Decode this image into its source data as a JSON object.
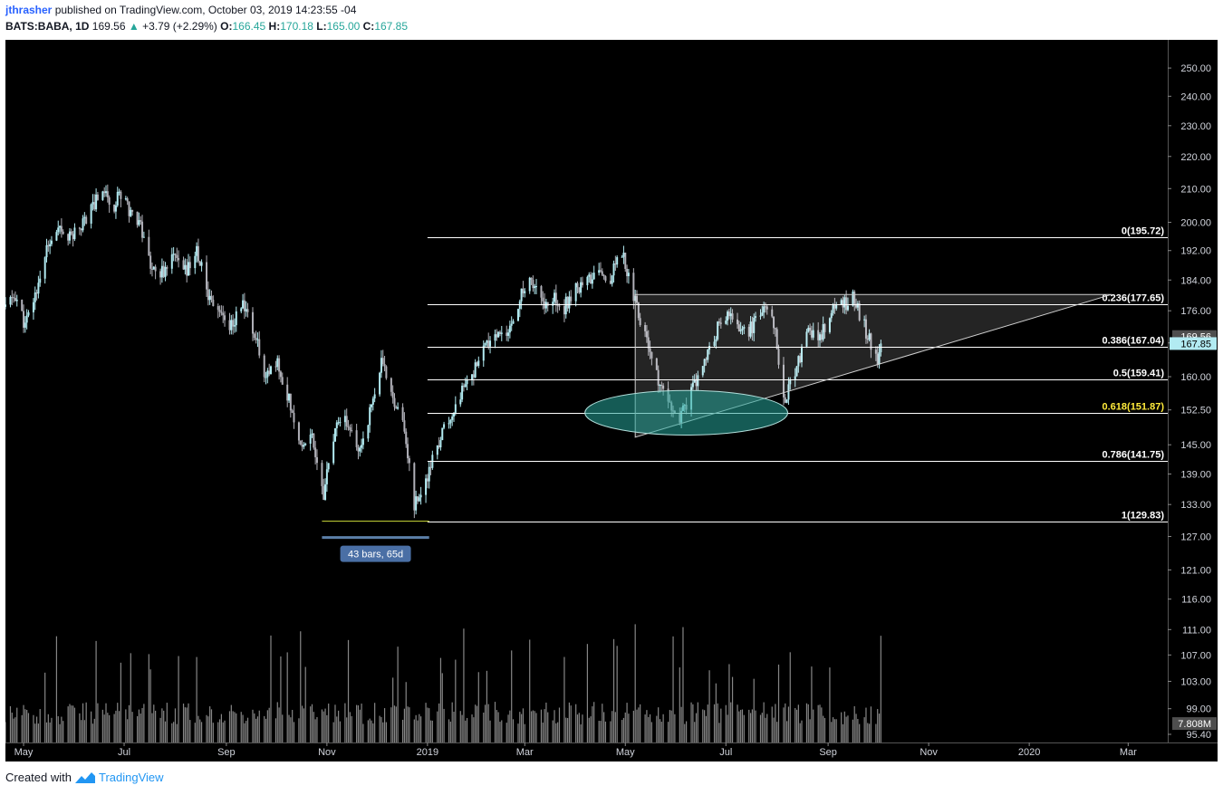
{
  "header": {
    "user": "jthrasher",
    "published": "published on TradingView.com, October 03, 2019 14:23:55 -04",
    "symbol": "BATS:BABA, 1D",
    "last": "169.56",
    "change_arrow": "▲",
    "change": "+3.79 (+2.29%)",
    "o_label": "O:",
    "o": "166.45",
    "h_label": "H:",
    "h": "170.18",
    "l_label": "L:",
    "l": "165.00",
    "c_label": "C:",
    "c": "167.85"
  },
  "footer": {
    "created": "Created with",
    "brand": "TradingView"
  },
  "colors": {
    "background": "#000000",
    "up_candle": "#b2ebf2",
    "down_candle": "#b0b0b8",
    "volume": "#9e9e9e",
    "fib_line": "#ffffff",
    "fib_highlight": "#ffeb3b",
    "ellipse_fill": "#26a69a",
    "price_tag": "#b2ebf2"
  },
  "chart_data": {
    "type": "candlestick",
    "title": "BATS:BABA, 1D",
    "y_scale": "log",
    "ylim": [
      95.4,
      256
    ],
    "x_range": [
      "2018-04-20",
      "2020-03-25"
    ],
    "x_ticks": [
      {
        "label": "May",
        "date": "2018-05-01"
      },
      {
        "label": "Jul",
        "date": "2018-07-01"
      },
      {
        "label": "Sep",
        "date": "2018-09-01"
      },
      {
        "label": "Nov",
        "date": "2018-11-01"
      },
      {
        "label": "2019",
        "date": "2019-01-01"
      },
      {
        "label": "Mar",
        "date": "2019-03-01"
      },
      {
        "label": "May",
        "date": "2019-05-01"
      },
      {
        "label": "Jul",
        "date": "2019-07-01"
      },
      {
        "label": "Sep",
        "date": "2019-09-01"
      },
      {
        "label": "Nov",
        "date": "2019-11-01"
      },
      {
        "label": "2020",
        "date": "2020-01-01"
      },
      {
        "label": "Mar",
        "date": "2020-03-01"
      }
    ],
    "y_ticks": [
      "250.00",
      "240.00",
      "230.00",
      "220.00",
      "210.00",
      "200.00",
      "192.00",
      "184.00",
      "176.00",
      "168.00",
      "160.00",
      "152.50",
      "145.00",
      "139.00",
      "133.00",
      "127.00",
      "121.00",
      "116.00",
      "111.00",
      "107.00",
      "103.00",
      "99.00",
      "95.40"
    ],
    "price_path": [
      {
        "date": "2018-04-20",
        "close": 177
      },
      {
        "date": "2018-04-26",
        "close": 180
      },
      {
        "date": "2018-05-02",
        "close": 172
      },
      {
        "date": "2018-05-08",
        "close": 180
      },
      {
        "date": "2018-05-15",
        "close": 192
      },
      {
        "date": "2018-05-22",
        "close": 197
      },
      {
        "date": "2018-05-30",
        "close": 196
      },
      {
        "date": "2018-06-06",
        "close": 200
      },
      {
        "date": "2018-06-12",
        "close": 205
      },
      {
        "date": "2018-06-18",
        "close": 210
      },
      {
        "date": "2018-06-25",
        "close": 205
      },
      {
        "date": "2018-06-29",
        "close": 209
      },
      {
        "date": "2018-07-05",
        "close": 203
      },
      {
        "date": "2018-07-10",
        "close": 201
      },
      {
        "date": "2018-07-17",
        "close": 188
      },
      {
        "date": "2018-07-24",
        "close": 186
      },
      {
        "date": "2018-07-31",
        "close": 190
      },
      {
        "date": "2018-08-07",
        "close": 186
      },
      {
        "date": "2018-08-14",
        "close": 192
      },
      {
        "date": "2018-08-21",
        "close": 180
      },
      {
        "date": "2018-08-28",
        "close": 176
      },
      {
        "date": "2018-09-04",
        "close": 172
      },
      {
        "date": "2018-09-11",
        "close": 178
      },
      {
        "date": "2018-09-18",
        "close": 170
      },
      {
        "date": "2018-09-25",
        "close": 160
      },
      {
        "date": "2018-10-02",
        "close": 163
      },
      {
        "date": "2018-10-09",
        "close": 155
      },
      {
        "date": "2018-10-16",
        "close": 145
      },
      {
        "date": "2018-10-23",
        "close": 147
      },
      {
        "date": "2018-10-30",
        "close": 135
      },
      {
        "date": "2018-11-06",
        "close": 148
      },
      {
        "date": "2018-11-13",
        "close": 150
      },
      {
        "date": "2018-11-20",
        "close": 143
      },
      {
        "date": "2018-11-27",
        "close": 152
      },
      {
        "date": "2018-12-04",
        "close": 163
      },
      {
        "date": "2018-12-11",
        "close": 156
      },
      {
        "date": "2018-12-18",
        "close": 148
      },
      {
        "date": "2018-12-24",
        "close": 133
      },
      {
        "date": "2018-12-31",
        "close": 137
      },
      {
        "date": "2019-01-07",
        "close": 145
      },
      {
        "date": "2019-01-14",
        "close": 150
      },
      {
        "date": "2019-01-21",
        "close": 156
      },
      {
        "date": "2019-01-28",
        "close": 160
      },
      {
        "date": "2019-02-04",
        "close": 166
      },
      {
        "date": "2019-02-11",
        "close": 170
      },
      {
        "date": "2019-02-18",
        "close": 169
      },
      {
        "date": "2019-02-25",
        "close": 178
      },
      {
        "date": "2019-03-04",
        "close": 185
      },
      {
        "date": "2019-03-11",
        "close": 178
      },
      {
        "date": "2019-03-18",
        "close": 180
      },
      {
        "date": "2019-03-25",
        "close": 177
      },
      {
        "date": "2019-04-01",
        "close": 182
      },
      {
        "date": "2019-04-08",
        "close": 184
      },
      {
        "date": "2019-04-15",
        "close": 186
      },
      {
        "date": "2019-04-22",
        "close": 185
      },
      {
        "date": "2019-04-29",
        "close": 192
      },
      {
        "date": "2019-05-06",
        "close": 180
      },
      {
        "date": "2019-05-13",
        "close": 170
      },
      {
        "date": "2019-05-20",
        "close": 160
      },
      {
        "date": "2019-05-27",
        "close": 153
      },
      {
        "date": "2019-06-03",
        "close": 150
      },
      {
        "date": "2019-06-10",
        "close": 157
      },
      {
        "date": "2019-06-17",
        "close": 162
      },
      {
        "date": "2019-06-24",
        "close": 170
      },
      {
        "date": "2019-07-01",
        "close": 175
      },
      {
        "date": "2019-07-08",
        "close": 172
      },
      {
        "date": "2019-07-15",
        "close": 171
      },
      {
        "date": "2019-07-22",
        "close": 175
      },
      {
        "date": "2019-07-29",
        "close": 176
      },
      {
        "date": "2019-08-05",
        "close": 155
      },
      {
        "date": "2019-08-12",
        "close": 160
      },
      {
        "date": "2019-08-19",
        "close": 172
      },
      {
        "date": "2019-08-26",
        "close": 168
      },
      {
        "date": "2019-09-02",
        "close": 175
      },
      {
        "date": "2019-09-09",
        "close": 177
      },
      {
        "date": "2019-09-16",
        "close": 179
      },
      {
        "date": "2019-09-23",
        "close": 172
      },
      {
        "date": "2019-10-01",
        "close": 163
      },
      {
        "date": "2019-10-03",
        "close": 167.85
      }
    ],
    "fib_retracement": {
      "x_start": "2019-01-01",
      "levels": [
        {
          "label": "0(195.72)",
          "price": 195.72,
          "highlight": false
        },
        {
          "label": "0.236(177.65)",
          "price": 177.65,
          "highlight": false
        },
        {
          "label": "0.386(167.04)",
          "price": 167.04,
          "highlight": false
        },
        {
          "label": "0.5(159.41)",
          "price": 159.41,
          "highlight": false
        },
        {
          "label": "0.618(151.87)",
          "price": 151.87,
          "highlight": true
        },
        {
          "label": "0.786(141.75)",
          "price": 141.75,
          "highlight": false
        },
        {
          "label": "1(129.83)",
          "price": 129.83,
          "highlight": false
        }
      ]
    },
    "triangle": {
      "points": [
        {
          "date": "2019-05-07",
          "price": 180.2
        },
        {
          "date": "2020-02-20",
          "price": 180.2
        },
        {
          "date": "2019-05-07",
          "price": 146.6
        }
      ]
    },
    "ellipse": {
      "center_date": "2019-06-07",
      "center_price": 151.87,
      "date_span_days": 123,
      "price_top": 157.0,
      "price_bottom": 147.2
    },
    "date_range_measure": {
      "label": "43 bars, 65d",
      "start_date": "2018-10-29",
      "end_date": "2019-01-02",
      "price": 129.83
    },
    "price_tags": [
      {
        "label": "169.56",
        "price": 169.56,
        "style": "dark"
      },
      {
        "label": "167.85",
        "price": 167.85,
        "style": "light"
      },
      {
        "label": "7.808M",
        "price": 96.9,
        "style": "dark"
      }
    ],
    "volume": {
      "series_end": "2019-10-03",
      "last": "7.808M"
    }
  }
}
